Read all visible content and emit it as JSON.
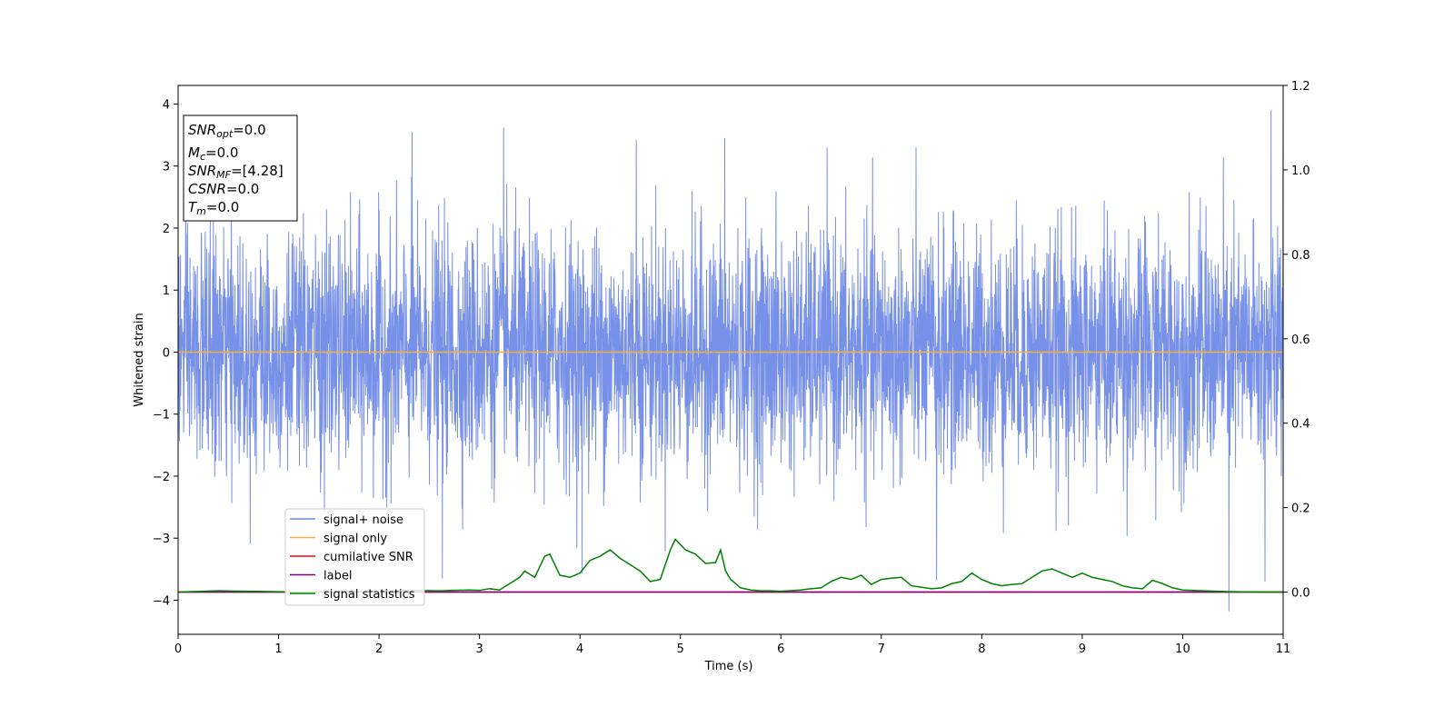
{
  "chart_data": {
    "type": "line",
    "xlabel": "Time (s)",
    "ylabel": "Whitened strain",
    "xlim": [
      0,
      11
    ],
    "ylim": [
      -4.55,
      4.3
    ],
    "y2lim": [
      -0.1,
      1.2
    ],
    "xticks": [
      "0",
      "1",
      "2",
      "3",
      "4",
      "5",
      "6",
      "7",
      "8",
      "9",
      "10",
      "11"
    ],
    "yticks": [
      "4",
      "3",
      "2",
      "1",
      "0",
      "−1",
      "−2",
      "−3",
      "−4"
    ],
    "y2ticks": [
      "1.2",
      "1.0",
      "0.8",
      "0.6",
      "0.4",
      "0.2",
      "0.0"
    ],
    "grid": false,
    "legend_position": "lower-left",
    "colors": {
      "signal_noise": "#6b87e6",
      "signal_only": "#f5b041",
      "cumulative_snr": "#ff0000",
      "label": "#800080",
      "signal_statistics": "#008000"
    },
    "series": [
      {
        "name": "signal+ noise",
        "axis": "left",
        "style": "dense-noise",
        "envelope_typical": [
          -2.0,
          2.0
        ],
        "peaks": [
          {
            "x": 2.33,
            "y": 3.55
          },
          {
            "x": 3.24,
            "y": 3.62
          },
          {
            "x": 4.56,
            "y": 3.42
          },
          {
            "x": 5.44,
            "y": 3.45
          },
          {
            "x": 10.88,
            "y": 3.9
          },
          {
            "x": 11.0,
            "y": 3.75
          }
        ],
        "troughs": [
          {
            "x": 10.46,
            "y": -4.18
          },
          {
            "x": 7.55,
            "y": -3.68
          },
          {
            "x": 2.63,
            "y": -3.65
          },
          {
            "x": 4.02,
            "y": -3.57
          },
          {
            "x": 10.82,
            "y": -3.7
          }
        ]
      },
      {
        "name": "signal only",
        "axis": "left",
        "x": [
          0,
          11
        ],
        "y": [
          0,
          0
        ]
      },
      {
        "name": "cumilative SNR",
        "axis": "right",
        "x": [
          0,
          11
        ],
        "y": [
          0,
          0
        ]
      },
      {
        "name": "label",
        "axis": "right",
        "x": [
          0,
          11
        ],
        "y": [
          0,
          0
        ]
      },
      {
        "name": "signal statistics",
        "axis": "right",
        "x": [
          0,
          0.4,
          0.7,
          1.0,
          1.3,
          1.6,
          2.0,
          2.3,
          2.6,
          2.9,
          3.0,
          3.1,
          3.2,
          3.3,
          3.4,
          3.45,
          3.55,
          3.65,
          3.7,
          3.8,
          3.9,
          4.0,
          4.1,
          4.2,
          4.3,
          4.4,
          4.5,
          4.6,
          4.7,
          4.8,
          4.9,
          4.95,
          5.05,
          5.15,
          5.25,
          5.35,
          5.4,
          5.45,
          5.5,
          5.6,
          5.7,
          5.8,
          5.9,
          6.0,
          6.2,
          6.3,
          6.4,
          6.5,
          6.6,
          6.7,
          6.8,
          6.9,
          7.0,
          7.1,
          7.2,
          7.3,
          7.5,
          7.6,
          7.7,
          7.8,
          7.9,
          8.0,
          8.1,
          8.2,
          8.3,
          8.4,
          8.5,
          8.6,
          8.7,
          8.8,
          8.9,
          9.0,
          9.1,
          9.2,
          9.3,
          9.4,
          9.5,
          9.6,
          9.7,
          9.8,
          9.9,
          10.0,
          10.2,
          10.5,
          10.8,
          11.0
        ],
        "y": [
          0.0,
          0.003,
          0.002,
          0.001,
          0.0,
          0.002,
          0.001,
          0.004,
          0.003,
          0.005,
          0.004,
          0.008,
          0.005,
          0.02,
          0.035,
          0.05,
          0.035,
          0.085,
          0.09,
          0.04,
          0.035,
          0.045,
          0.075,
          0.085,
          0.1,
          0.08,
          0.065,
          0.05,
          0.025,
          0.03,
          0.1,
          0.125,
          0.1,
          0.09,
          0.068,
          0.07,
          0.1,
          0.05,
          0.03,
          0.01,
          0.005,
          0.003,
          0.003,
          0.002,
          0.005,
          0.008,
          0.01,
          0.025,
          0.035,
          0.03,
          0.04,
          0.018,
          0.03,
          0.033,
          0.035,
          0.015,
          0.008,
          0.01,
          0.02,
          0.025,
          0.045,
          0.03,
          0.02,
          0.015,
          0.018,
          0.02,
          0.035,
          0.05,
          0.055,
          0.045,
          0.035,
          0.045,
          0.035,
          0.03,
          0.025,
          0.015,
          0.01,
          0.008,
          0.028,
          0.02,
          0.01,
          0.005,
          0.003,
          0.001,
          0.0,
          0.0
        ]
      }
    ],
    "annotation": {
      "lines": [
        {
          "name": "SNR",
          "sub": "opt",
          "value": "=0.0"
        },
        {
          "name": "M",
          "sub": "c",
          "value": "=0.0"
        },
        {
          "name": "SNR",
          "sub": "MF",
          "value": "=[4.28]"
        },
        {
          "name": "CSNR",
          "sub": "",
          "value": "=0.0"
        },
        {
          "name": "T",
          "sub": "m",
          "value": "=0.0"
        }
      ]
    }
  }
}
